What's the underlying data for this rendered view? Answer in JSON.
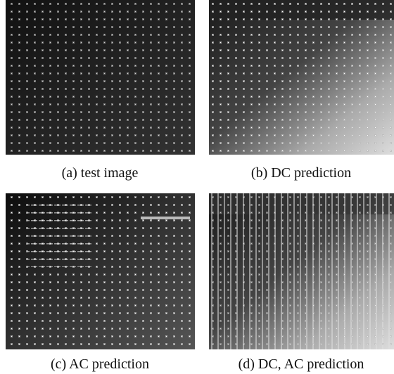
{
  "panels": [
    {
      "caption": "(a) test image"
    },
    {
      "caption": "(b) DC prediction"
    },
    {
      "caption": "(c) AC prediction"
    },
    {
      "caption": "(d) DC, AC prediction"
    }
  ]
}
